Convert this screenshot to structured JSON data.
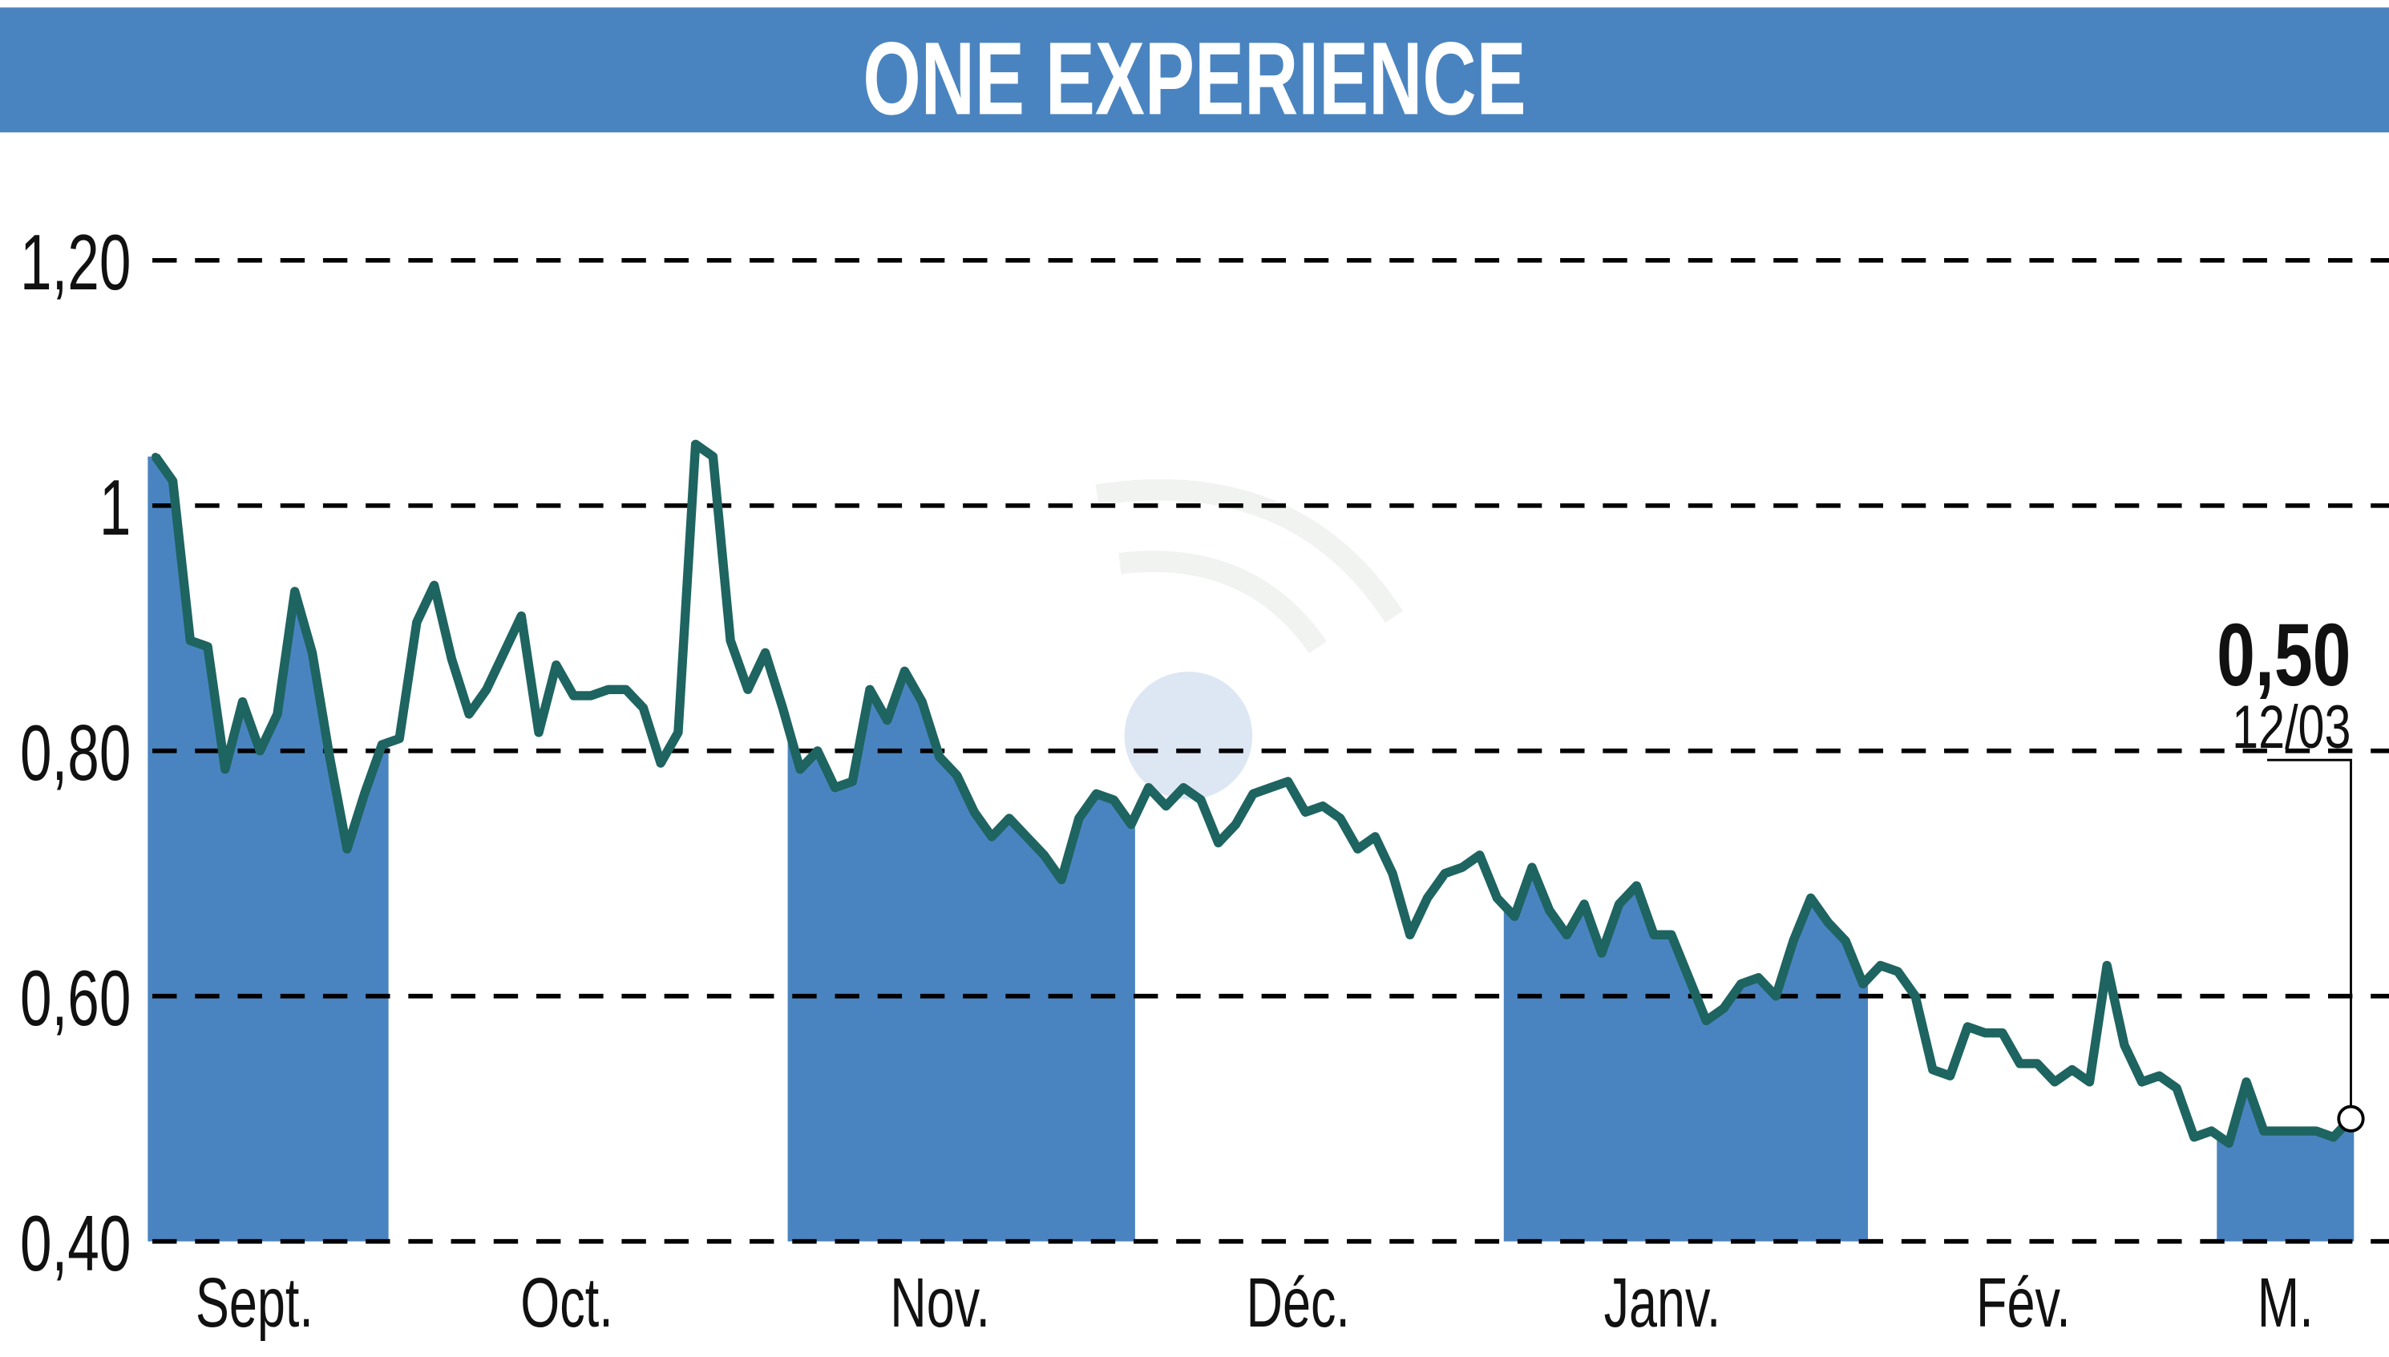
{
  "chart_data": {
    "type": "line",
    "title": "ONE EXPERIENCE",
    "xlabel": "",
    "ylabel": "",
    "ylim": [
      0.4,
      1.25
    ],
    "grid": true,
    "y_ticks": [
      "1,20",
      "1",
      "0,80",
      "0,60",
      "0,40"
    ],
    "y_tick_values": [
      1.2,
      1.0,
      0.8,
      0.6,
      0.4
    ],
    "months": [
      "Sept.",
      "Oct.",
      "Nov.",
      "Déc.",
      "Janv.",
      "Fév.",
      "M."
    ],
    "shaded_months": [
      "Sept.",
      "Nov.",
      "Janv.",
      "M."
    ],
    "last_value_label": "0,50",
    "last_date_label": "12/03",
    "colors": {
      "title_bar": "#4a84c0",
      "line": "#1e6461",
      "fill": "#4a84c0"
    },
    "values": [
      1.04,
      1.02,
      0.89,
      0.885,
      0.785,
      0.84,
      0.8,
      0.83,
      0.93,
      0.88,
      0.795,
      0.72,
      0.765,
      0.805,
      0.81,
      0.905,
      0.935,
      0.875,
      0.83,
      0.85,
      0.88,
      0.91,
      0.815,
      0.87,
      0.845,
      0.845,
      0.85,
      0.85,
      0.835,
      0.79,
      0.815,
      1.05,
      1.04,
      0.89,
      0.85,
      0.88,
      0.835,
      0.785,
      0.8,
      0.77,
      0.775,
      0.85,
      0.825,
      0.865,
      0.84,
      0.795,
      0.78,
      0.75,
      0.73,
      0.745,
      0.73,
      0.715,
      0.695,
      0.745,
      0.765,
      0.76,
      0.74,
      0.77,
      0.755,
      0.77,
      0.76,
      0.725,
      0.74,
      0.765,
      0.77,
      0.775,
      0.75,
      0.755,
      0.745,
      0.72,
      0.73,
      0.7,
      0.65,
      0.68,
      0.7,
      0.705,
      0.715,
      0.68,
      0.665,
      0.705,
      0.67,
      0.65,
      0.675,
      0.635,
      0.675,
      0.69,
      0.65,
      0.65,
      0.615,
      0.58,
      0.59,
      0.61,
      0.615,
      0.6,
      0.645,
      0.68,
      0.66,
      0.645,
      0.61,
      0.625,
      0.62,
      0.6,
      0.54,
      0.535,
      0.575,
      0.57,
      0.57,
      0.545,
      0.545,
      0.53,
      0.54,
      0.53,
      0.625,
      0.56,
      0.53,
      0.535,
      0.525,
      0.485,
      0.49,
      0.48,
      0.53,
      0.49,
      0.49,
      0.49,
      0.49,
      0.485,
      0.5
    ]
  }
}
